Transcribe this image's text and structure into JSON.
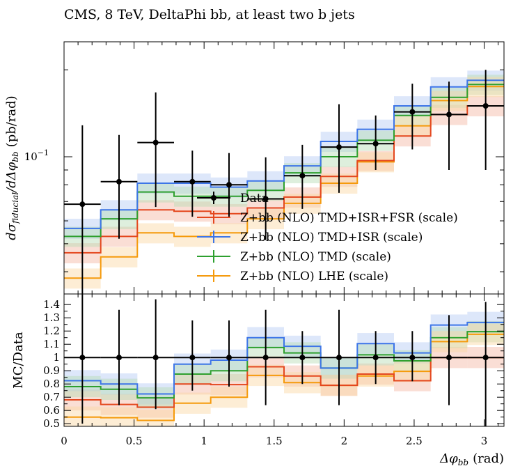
{
  "chart_data": {
    "type": "line",
    "title": "CMS, 8 TeV, DeltaPhi bb, at least two b jets",
    "xlabel": "Δφ",
    "xlabel_sub": "bb",
    "xlabel_unit": "(rad)",
    "ylabel": "dσ",
    "ylabel_sub1": "fiducial",
    "ylabel_mid": "/dΔφ",
    "ylabel_sub2": "bb",
    "ylabel_unit": "(pb/rad)",
    "ratio_ylabel": "MC/Data",
    "xlim": [
      0,
      3.1416
    ],
    "ylim_main": [
      0.0335,
      0.25
    ],
    "ylim_ratio": [
      0.48,
      1.48
    ],
    "log_y": true,
    "grid": false,
    "legend_position": "center-right",
    "main_y_tick_label_base": "10",
    "main_y_tick_label_exp": "−1",
    "x_ticks": [
      0,
      0.5,
      1,
      1.5,
      2,
      2.5,
      3
    ],
    "x_tick_labels": [
      "0",
      "0.5",
      "1",
      "1.5",
      "2",
      "2.5",
      "3"
    ],
    "ratio_ticks": [
      0.5,
      0.6,
      0.7,
      0.8,
      0.9,
      1,
      1.1,
      1.2,
      1.3,
      1.4
    ],
    "ratio_tick_labels": [
      "0.5",
      "0.6",
      "0.7",
      "0.8",
      "0.9",
      "1",
      "1.1",
      "1.2",
      "1.3",
      "1.4"
    ],
    "bin_edges": [
      0,
      0.2618,
      0.5236,
      0.7854,
      1.0472,
      1.309,
      1.5708,
      1.8326,
      2.0944,
      2.3562,
      2.618,
      2.8798,
      3.1416
    ],
    "data": {
      "name": "Data",
      "color": "#000000",
      "values": [
        0.0685,
        0.082,
        0.112,
        0.082,
        0.08,
        0.0715,
        0.086,
        0.108,
        0.111,
        0.143,
        0.14,
        0.15
      ],
      "err_low": [
        0.047,
        0.03,
        0.045,
        0.02,
        0.018,
        0.02,
        0.02,
        0.033,
        0.021,
        0.037,
        0.05,
        0.06
      ],
      "err_high": [
        0.06,
        0.037,
        0.055,
        0.023,
        0.023,
        0.028,
        0.024,
        0.044,
        0.028,
        0.036,
        0.042,
        0.05
      ],
      "ratio_err_low": [
        0.5,
        0.36,
        0.39,
        0.25,
        0.22,
        0.36,
        0.2,
        0.36,
        0.2,
        0.18,
        0.36,
        0.52
      ],
      "ratio_err_high": [
        0.5,
        0.36,
        0.44,
        0.28,
        0.28,
        0.36,
        0.2,
        0.36,
        0.2,
        0.2,
        0.32,
        0.42
      ]
    },
    "series": [
      {
        "name": "Z+bb (NLO) TMD+ISR+FSR (scale)",
        "color": "#e4471e",
        "band": "#f4b5a1",
        "values": [
          0.0465,
          0.053,
          0.0655,
          0.0648,
          0.0635,
          0.0665,
          0.0725,
          0.0855,
          0.097,
          0.118,
          0.14,
          0.15
        ],
        "ratio": [
          0.68,
          0.645,
          0.625,
          0.8,
          0.795,
          0.93,
          0.86,
          0.79,
          0.875,
          0.825,
          1.0,
          1.0
        ]
      },
      {
        "name": "Z+bb (NLO) TMD+ISR (scale)",
        "color": "#3d75e8",
        "band": "#b3c9f3",
        "values": [
          0.0565,
          0.0655,
          0.081,
          0.081,
          0.0785,
          0.0825,
          0.093,
          0.113,
          0.1245,
          0.15,
          0.1745,
          0.184
        ],
        "ratio": [
          0.825,
          0.8,
          0.725,
          0.95,
          0.98,
          1.15,
          1.085,
          0.92,
          1.105,
          1.035,
          1.245,
          1.265
        ]
      },
      {
        "name": "Z+bb (NLO) TMD (scale)",
        "color": "#2ea02f",
        "band": "#b6dcb3",
        "values": [
          0.053,
          0.061,
          0.0755,
          0.073,
          0.073,
          0.0765,
          0.088,
          0.1,
          0.114,
          0.139,
          0.1605,
          0.178
        ],
        "ratio": [
          0.78,
          0.76,
          0.695,
          0.875,
          0.9,
          1.075,
          1.035,
          0.92,
          1.02,
          0.975,
          1.15,
          1.195
        ]
      },
      {
        "name": "Z+bb (NLO) LHE (scale)",
        "color": "#f59a0b",
        "band": "#fbd6a1",
        "values": [
          0.038,
          0.045,
          0.0545,
          0.053,
          0.0545,
          0.061,
          0.069,
          0.081,
          0.096,
          0.128,
          0.1565,
          0.175
        ],
        "ratio": [
          0.55,
          0.545,
          0.525,
          0.655,
          0.7,
          0.865,
          0.81,
          0.79,
          0.86,
          0.895,
          1.12,
          1.175
        ]
      }
    ],
    "band_rel_width": 0.08
  }
}
